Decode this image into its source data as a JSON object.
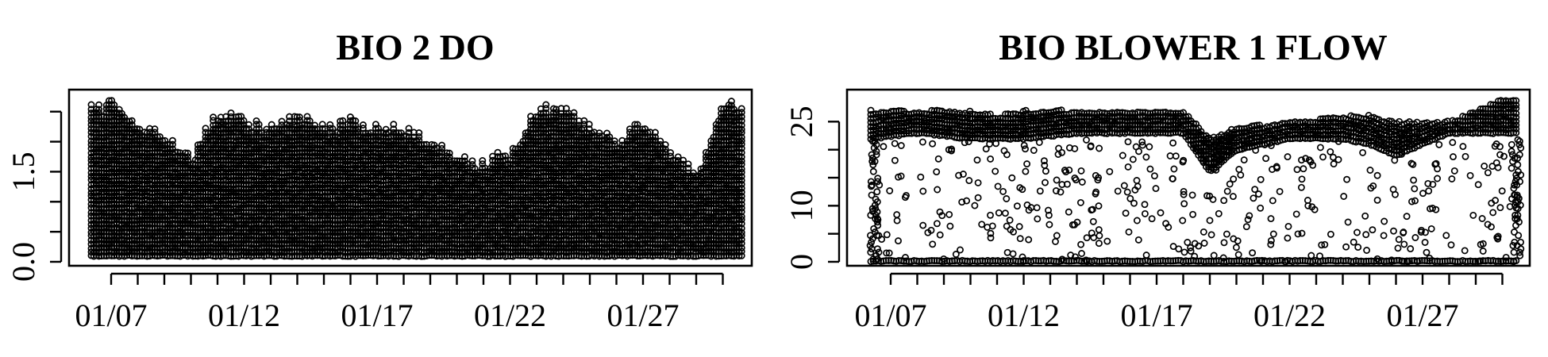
{
  "chart_data": [
    {
      "type": "scatter",
      "title": "BIO 2 DO",
      "xlabel": "",
      "ylabel": "",
      "x_tick_labels": [
        "01/07",
        "01/12",
        "01/17",
        "01/22",
        "01/27"
      ],
      "y_tick_labels": [
        "0.0",
        "1.5"
      ],
      "y_ticks": [
        0,
        0.5,
        1,
        1.5,
        2,
        2.5
      ],
      "xlim": [
        "2023-01-06",
        "2023-01-30"
      ],
      "ylim": [
        0,
        2.8
      ],
      "grid": false,
      "legend": "none",
      "series": [
        {
          "x": [
            "01/06",
            "01/07",
            "01/08",
            "01/09",
            "01/10",
            "01/11",
            "01/12",
            "01/13",
            "01/14",
            "01/15",
            "01/16",
            "01/17",
            "01/18",
            "01/19",
            "01/20",
            "01/21",
            "01/22",
            "01/23",
            "01/24",
            "01/25",
            "01/26",
            "01/27",
            "01/28",
            "01/29",
            "01/30"
          ],
          "y_min": [
            0.1,
            0.1,
            0.1,
            0.1,
            0.1,
            0.1,
            0.1,
            0.1,
            0.1,
            0.1,
            0.1,
            0.1,
            0.1,
            0.1,
            0.1,
            0.1,
            0.1,
            0.1,
            0.1,
            0.1,
            0.1,
            0.1,
            0.1,
            0.1,
            0.1
          ],
          "y_max": [
            2.5,
            2.6,
            2.2,
            2.1,
            1.7,
            2.5,
            2.3,
            2.2,
            2.4,
            2.2,
            2.3,
            2.2,
            2.2,
            2.0,
            1.7,
            1.6,
            1.8,
            2.5,
            2.5,
            2.2,
            2.0,
            2.3,
            1.8,
            1.4,
            2.6
          ]
        }
      ]
    },
    {
      "type": "scatter",
      "title": "BIO BLOWER 1 FLOW",
      "xlabel": "",
      "ylabel": "",
      "x_tick_labels": [
        "01/07",
        "01/12",
        "01/17",
        "01/22",
        "01/27"
      ],
      "y_tick_labels": [
        "0",
        "10",
        "25"
      ],
      "y_ticks": [
        0,
        5,
        10,
        15,
        20,
        25
      ],
      "xlim": [
        "2023-01-06",
        "2023-01-30"
      ],
      "ylim": [
        0,
        30
      ],
      "grid": false,
      "legend": "none",
      "series": [
        {
          "band_x": [
            "01/06",
            "01/08",
            "01/10",
            "01/11",
            "01/12",
            "01/14",
            "01/16",
            "01/17",
            "01/18",
            "01/19",
            "01/20",
            "01/22",
            "01/24",
            "01/25",
            "01/26",
            "01/28",
            "01/30"
          ],
          "band_low": [
            22,
            23,
            22,
            22,
            22,
            23,
            23,
            23,
            23,
            16,
            20,
            22,
            22,
            21,
            19,
            23,
            23
          ],
          "band_high": [
            27,
            27,
            27,
            26,
            27,
            27,
            27,
            27,
            27,
            22,
            24,
            25,
            26,
            26,
            25,
            25,
            29
          ]
        }
      ]
    }
  ]
}
